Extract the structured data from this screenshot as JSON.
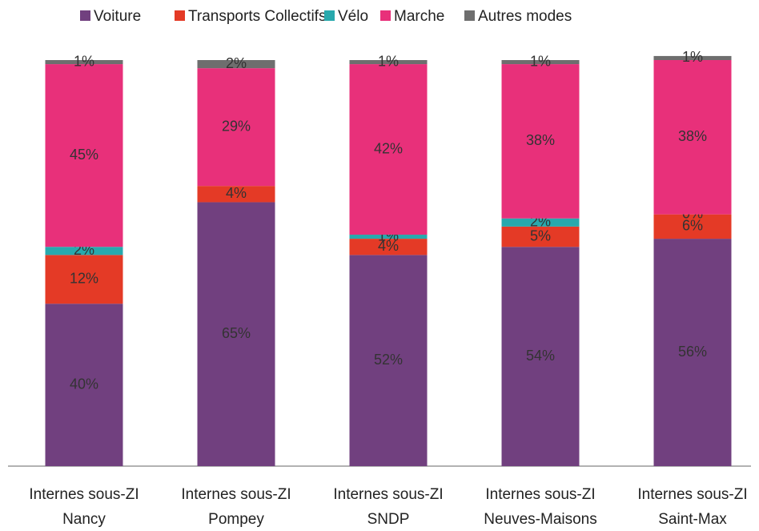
{
  "chart_data": {
    "type": "stacked_bar",
    "categories": [
      [
        "Internes sous-ZI",
        "Nancy"
      ],
      [
        "Internes sous-ZI",
        "Pompey"
      ],
      [
        "Internes sous-ZI",
        "SNDP"
      ],
      [
        "Internes sous-ZI",
        "Neuves-Maisons"
      ],
      [
        "Internes sous-ZI",
        "Saint-Max"
      ]
    ],
    "series": [
      {
        "name": "Voiture",
        "color": "#71407f",
        "values": [
          40,
          65,
          52,
          54,
          56
        ],
        "value_labels": [
          "40%",
          "65%",
          "52%",
          "54%",
          "56%"
        ]
      },
      {
        "name": "Transports Collectifs",
        "color": "#e43a26",
        "values": [
          12,
          4,
          4,
          5,
          6
        ],
        "value_labels": [
          "12%",
          "4%",
          "4%",
          "5%",
          "6%"
        ]
      },
      {
        "name": "Vélo",
        "color": "#28a9ad",
        "values": [
          2,
          null,
          1,
          2,
          0
        ],
        "value_labels": [
          "2%",
          null,
          "1%",
          "2%",
          "0%"
        ]
      },
      {
        "name": "Marche",
        "color": "#e8307a",
        "values": [
          45,
          29,
          42,
          38,
          38
        ],
        "value_labels": [
          "45%",
          "29%",
          "42%",
          "38%",
          "38%"
        ]
      },
      {
        "name": "Autres modes",
        "color": "#6e6e6e",
        "values": [
          1,
          2,
          1,
          1,
          1
        ],
        "value_labels": [
          "1%",
          "2%",
          "1%",
          "1%",
          "1%"
        ]
      }
    ],
    "ylim": [
      0,
      100
    ],
    "legend": "top"
  }
}
